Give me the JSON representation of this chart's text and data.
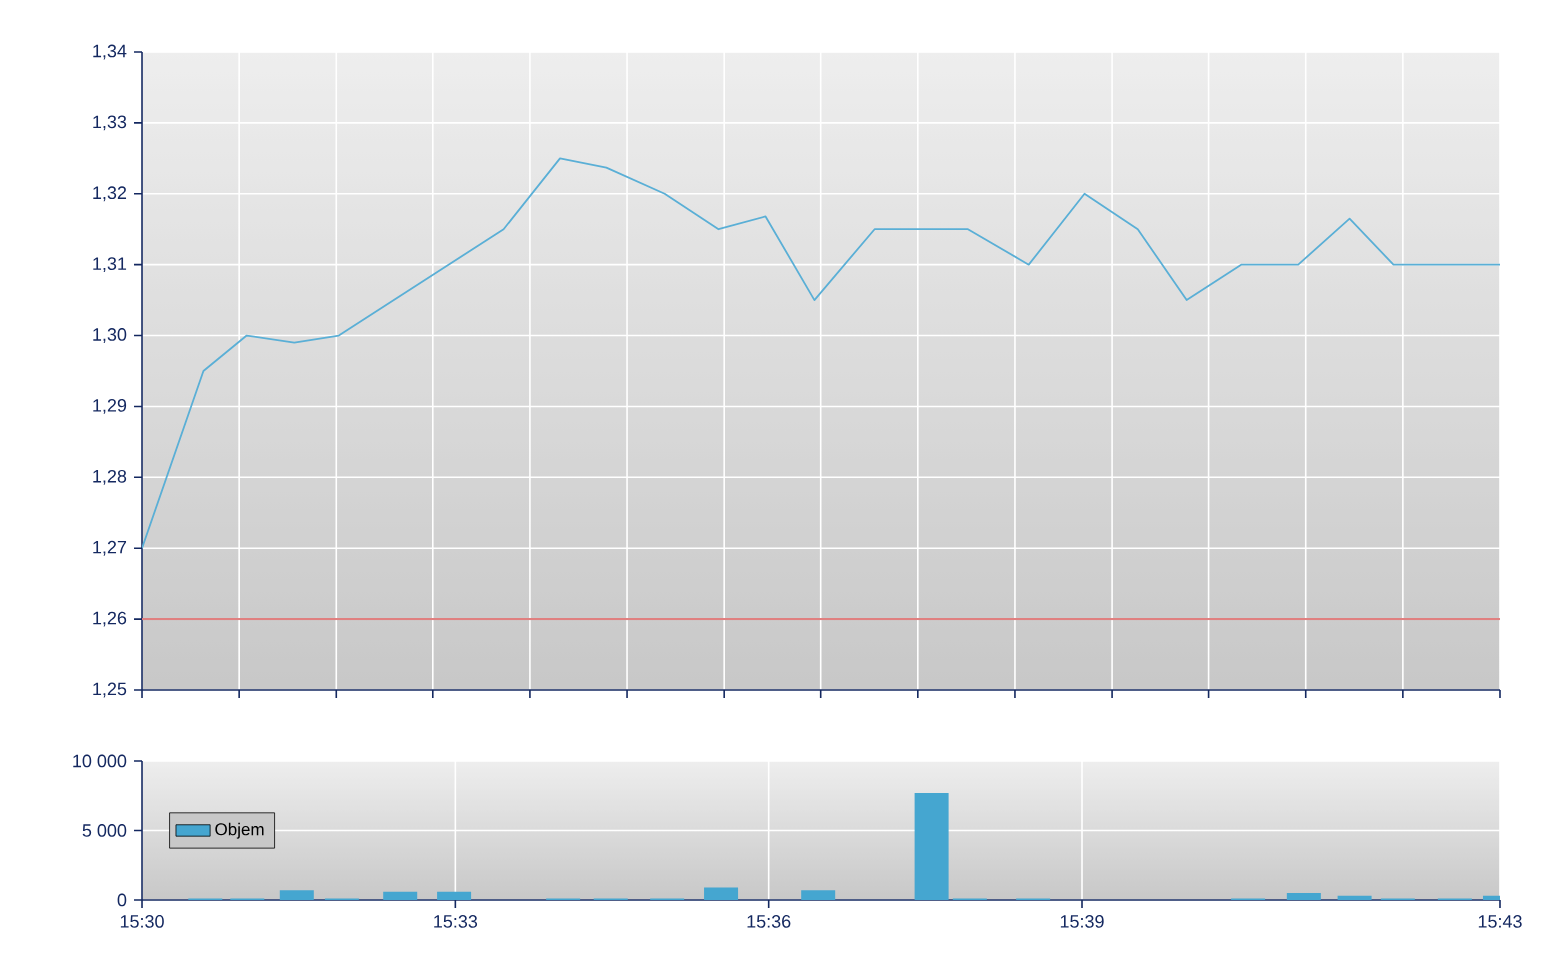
{
  "chart_data": [
    {
      "type": "line",
      "color": "#5aafd6",
      "x": [
        15.5,
        15.5098,
        15.5167,
        15.5243,
        15.5314,
        15.5577,
        15.5667,
        15.5741,
        15.5834,
        15.592,
        15.5995,
        15.6073,
        15.6169,
        15.6318,
        15.6415,
        15.6504,
        15.6589,
        15.6667,
        15.6754,
        15.6845,
        15.6927,
        15.6997,
        15.7167
      ],
      "values": [
        1.27,
        1.295,
        1.3,
        1.299,
        1.3,
        1.315,
        1.325,
        1.3237,
        1.32,
        1.315,
        1.3168,
        1.305,
        1.315,
        1.315,
        1.31,
        1.32,
        1.315,
        1.305,
        1.31,
        1.31,
        1.3165,
        1.31,
        1.31
      ],
      "xlim": [
        15.5,
        15.7167
      ],
      "ylim": [
        1.25,
        1.34
      ],
      "xticks": [
        {
          "value": 15.5,
          "label": null
        },
        {
          "value": 15.5155,
          "label": null
        },
        {
          "value": 15.531,
          "label": null
        },
        {
          "value": 15.5464,
          "label": null
        },
        {
          "value": 15.5619,
          "label": null
        },
        {
          "value": 15.5774,
          "label": null
        },
        {
          "value": 15.5929,
          "label": null
        },
        {
          "value": 15.6083,
          "label": null
        },
        {
          "value": 15.6238,
          "label": null
        },
        {
          "value": 15.6393,
          "label": null
        },
        {
          "value": 15.6548,
          "label": null
        },
        {
          "value": 15.6702,
          "label": null
        },
        {
          "value": 15.6857,
          "label": null
        },
        {
          "value": 15.7012,
          "label": null
        },
        {
          "value": 15.7167,
          "label": null
        }
      ],
      "yticks": [
        {
          "value": 1.25,
          "label": "1,25"
        },
        {
          "value": 1.26,
          "label": "1,26"
        },
        {
          "value": 1.27,
          "label": "1,27"
        },
        {
          "value": 1.28,
          "label": "1,28"
        },
        {
          "value": 1.29,
          "label": "1,29"
        },
        {
          "value": 1.3,
          "label": "1,30"
        },
        {
          "value": 1.31,
          "label": "1,31"
        },
        {
          "value": 1.32,
          "label": "1,32"
        },
        {
          "value": 1.33,
          "label": "1,33"
        },
        {
          "value": 1.34,
          "label": "1,34"
        }
      ],
      "ref_lines": [
        {
          "axis": "y",
          "value": 1.26,
          "color": "#e08080"
        }
      ],
      "grid": true,
      "tick_labels": "y"
    },
    {
      "type": "bar",
      "x": [
        15.5101,
        15.5168,
        15.5247,
        15.5319,
        15.5412,
        15.5498,
        15.5672,
        15.5748,
        15.5838,
        15.5924,
        15.6079,
        15.626,
        15.6321,
        15.6422,
        15.6765,
        15.6854,
        15.6935,
        15.7004,
        15.7095,
        15.7167
      ],
      "series": [
        {
          "name": "Objem",
          "color": "#45a6d0",
          "values": [
            100,
            100,
            700,
            100,
            600,
            600,
            100,
            100,
            100,
            900,
            700,
            7700,
            100,
            100,
            100,
            500,
            300,
            100,
            100,
            300
          ]
        }
      ],
      "xlim": [
        15.5,
        15.7167
      ],
      "ylim": [
        0,
        10000
      ],
      "xticks": [
        {
          "value": 15.5,
          "label": "15:30"
        },
        {
          "value": 15.55,
          "label": "15:33"
        },
        {
          "value": 15.6,
          "label": "15:36"
        },
        {
          "value": 15.65,
          "label": "15:39"
        },
        {
          "value": 15.7167,
          "label": "15:43"
        }
      ],
      "yticks": [
        {
          "value": 0,
          "label": "0"
        },
        {
          "value": 5000,
          "label": "5 000"
        },
        {
          "value": 10000,
          "label": "10 000"
        }
      ],
      "grid": true,
      "legend": "left"
    }
  ]
}
